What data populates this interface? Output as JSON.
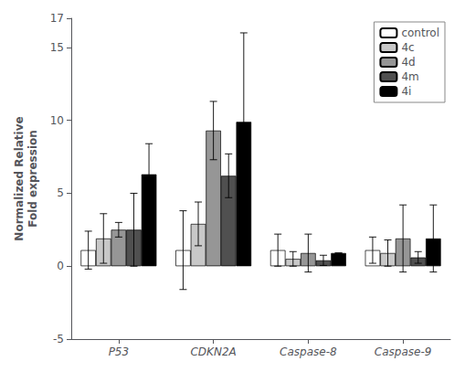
{
  "chart_data": {
    "type": "bar",
    "categories": [
      "P53",
      "CDKN2A",
      "Caspase-8",
      "Caspase-9"
    ],
    "series": [
      {
        "name": "control",
        "color": "#ffffff",
        "values": [
          1.1,
          1.1,
          1.1,
          1.1
        ],
        "errors": [
          1.3,
          2.7,
          1.1,
          0.9
        ]
      },
      {
        "name": "4c",
        "color": "#c8c8c8",
        "values": [
          1.9,
          2.9,
          0.5,
          0.9
        ],
        "errors": [
          1.7,
          1.5,
          0.5,
          0.9
        ]
      },
      {
        "name": "4d",
        "color": "#969696",
        "values": [
          2.5,
          9.3,
          0.9,
          1.9
        ],
        "errors": [
          0.5,
          2.0,
          1.3,
          2.3
        ]
      },
      {
        "name": "4m",
        "color": "#505050",
        "values": [
          2.5,
          6.2,
          0.4,
          0.6
        ],
        "errors": [
          2.5,
          1.5,
          0.35,
          0.4
        ]
      },
      {
        "name": "4i",
        "color": "#000000",
        "values": [
          6.3,
          9.9,
          0.9,
          1.9
        ],
        "errors": [
          2.1,
          6.1,
          0.0,
          2.3
        ]
      }
    ],
    "ylabel": "Normalized Relative\nFold expression",
    "ylim": [
      -5,
      17
    ],
    "yticks": [
      -5,
      0,
      5,
      10,
      15
    ],
    "grid": false,
    "legend": "upper right"
  }
}
